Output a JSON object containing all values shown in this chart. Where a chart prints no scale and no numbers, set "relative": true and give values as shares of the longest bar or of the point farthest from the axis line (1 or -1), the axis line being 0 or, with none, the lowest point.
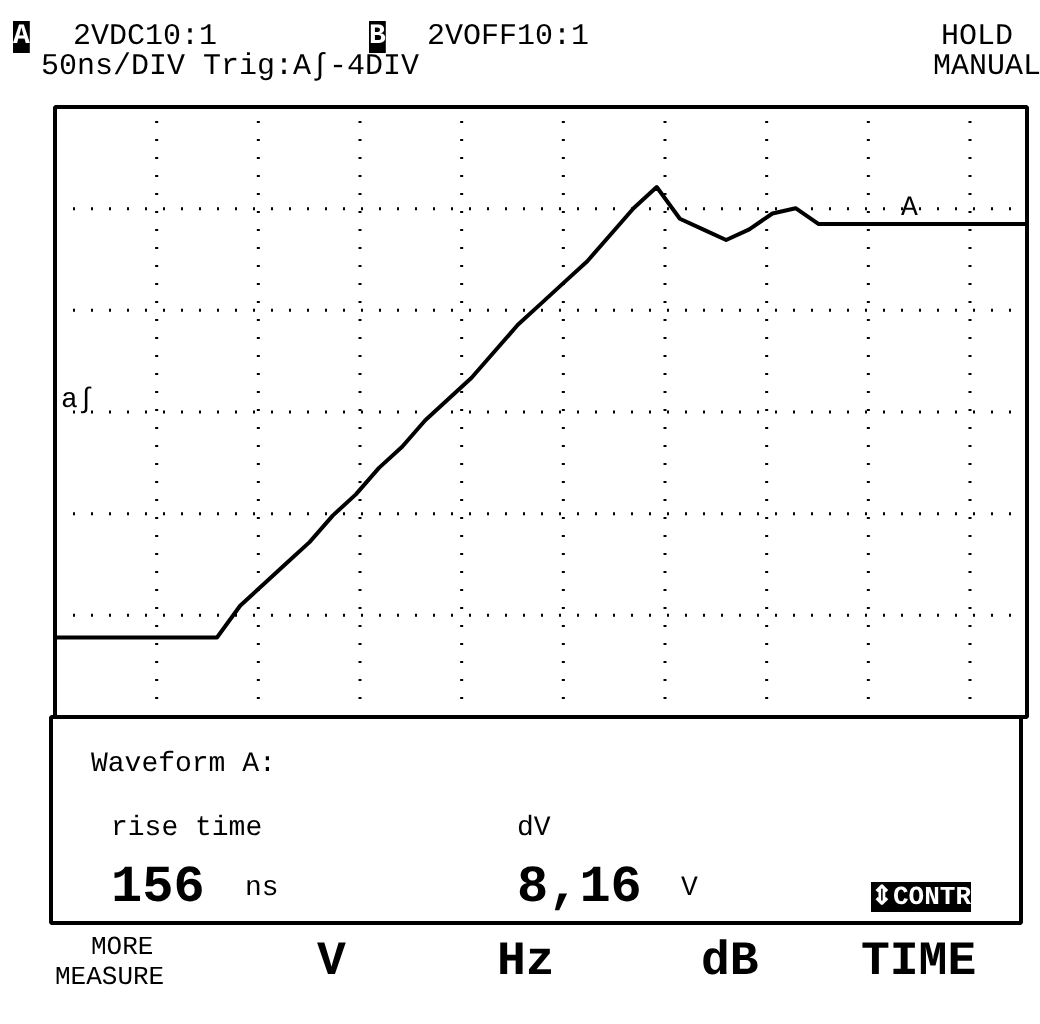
{
  "chart_data": {
    "type": "line",
    "relative": true,
    "grid": true,
    "categories": [
      null,
      null,
      null,
      null,
      null,
      null,
      null,
      null,
      null,
      null,
      null,
      null,
      null,
      null,
      null,
      null,
      null,
      null,
      null,
      null,
      null,
      null,
      null,
      null,
      null,
      null,
      null,
      null,
      null,
      null,
      null,
      null,
      null,
      null,
      null,
      null,
      null,
      null,
      null,
      null,
      null,
      null,
      null
    ],
    "series": [
      {
        "color": "#000000",
        "values": [
          0.15,
          0.15,
          0.15,
          0.15,
          0.15,
          0.15,
          0.15,
          0.15,
          0.21,
          0.25,
          0.29,
          0.33,
          0.38,
          0.42,
          0.47,
          0.51,
          0.56,
          0.6,
          0.64,
          0.69,
          0.74,
          0.78,
          0.82,
          0.86,
          0.91,
          0.96,
          1.0,
          0.94,
          0.92,
          0.9,
          0.92,
          0.95,
          0.96,
          0.93,
          0.93,
          0.93,
          0.93,
          0.93,
          0.93,
          0.93,
          0.93,
          0.93,
          0.93
        ]
      }
    ],
    "annotations": [
      "A",
      "2VDC10:1",
      "B",
      "2VOFF10:1",
      "HOLD",
      "50ns/DIV Trig:A∫-4DIV",
      "MANUAL",
      "a∫",
      "A",
      "Waveform A:",
      "rise time",
      "156",
      "ns",
      "dV",
      "8,16",
      "V",
      "⇕CONTR",
      "MORE",
      "MEASURE",
      "V",
      "Hz",
      "dB",
      "TIME"
    ]
  }
}
